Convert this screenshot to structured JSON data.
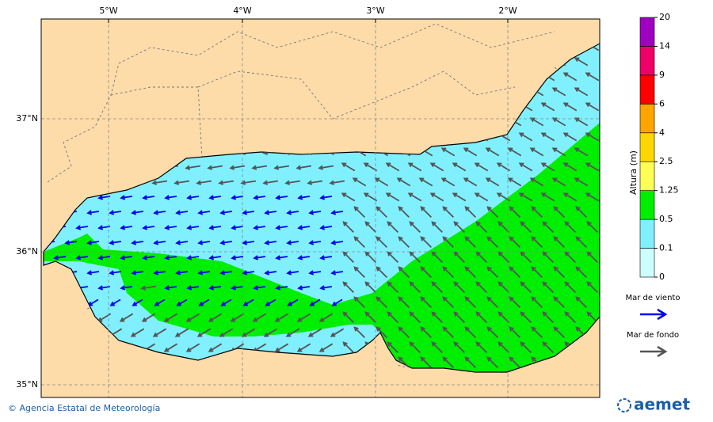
{
  "map": {
    "lon_labels": [
      "5°W",
      "4°W",
      "3°W",
      "2°W"
    ],
    "lat_labels": [
      "37°N",
      "36°N",
      "35°N"
    ],
    "colorbar": {
      "title": "Altura (m)",
      "levels": [
        0,
        0.1,
        0.5,
        1.25,
        2.5,
        4,
        6,
        9,
        14,
        20
      ],
      "colors": [
        "#ccffff",
        "#80f0ff",
        "#00ee00",
        "#ffff55",
        "#ffd700",
        "#ffa500",
        "#ff0000",
        "#ee0066",
        "#a000c0"
      ]
    },
    "legend": [
      {
        "label": "Mar de viento",
        "color": "#0000ee"
      },
      {
        "label": "Mar de fondo",
        "color": "#555555"
      }
    ]
  },
  "footer": {
    "credit": "© Agencia Estatal de Meteorología",
    "logo": "aemet"
  }
}
